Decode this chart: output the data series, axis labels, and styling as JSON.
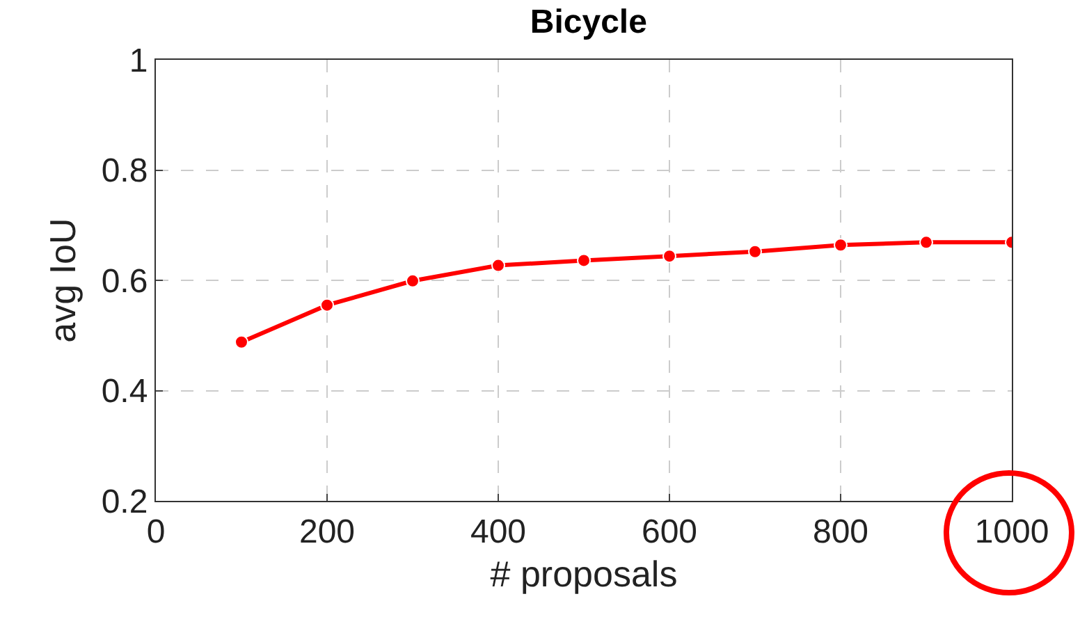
{
  "chart_data": {
    "type": "line",
    "title": "Bicycle",
    "xlabel": "# proposals",
    "ylabel": "avg IoU",
    "x": [
      100,
      200,
      300,
      400,
      500,
      600,
      700,
      800,
      900,
      1000
    ],
    "series": [
      {
        "color": "#ff0000",
        "values": [
          0.488,
          0.555,
          0.599,
          0.627,
          0.636,
          0.644,
          0.652,
          0.664,
          0.669,
          0.669
        ]
      }
    ],
    "xlim": [
      0,
      1000
    ],
    "xticks": [
      0,
      200,
      400,
      600,
      800,
      1000
    ],
    "ylim": [
      0.2,
      1
    ],
    "yticks": [
      0.2,
      0.4,
      0.6,
      0.8,
      1
    ],
    "grid": true,
    "marker": "circle",
    "line_style": "solid",
    "legend": false
  }
}
